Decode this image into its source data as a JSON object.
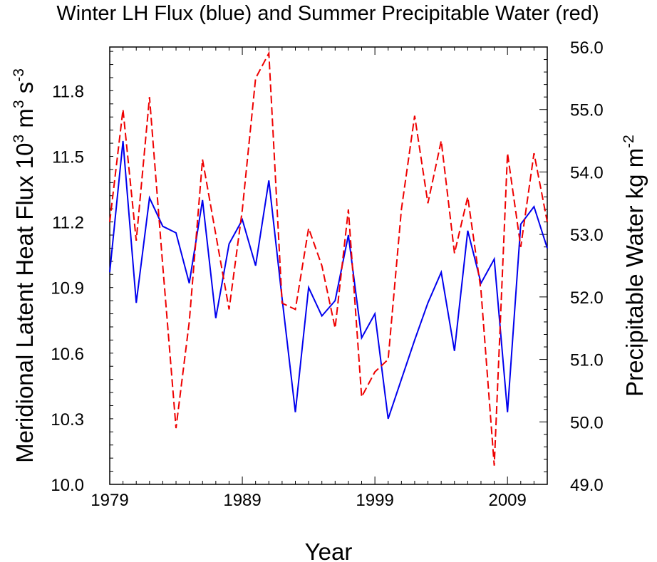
{
  "chart_data": {
    "type": "line",
    "title": "Winter LH Flux (blue) and Summer Precipitable Water (red)",
    "xlabel": "Year",
    "ylabel_left": "Meridional Latent Heat Flux 10",
    "ylabel_left_sup1": "3",
    "ylabel_left_mid": " m",
    "ylabel_left_sup2": "3",
    "ylabel_left_end": " s",
    "ylabel_left_sup3": "-3",
    "ylabel_right": "Precipitable Water kg m",
    "ylabel_right_sup": "-2",
    "xlim": [
      1979,
      2012
    ],
    "ylim_left": [
      10.0,
      12.0
    ],
    "ylim_right": [
      49.0,
      56.0
    ],
    "x_ticks": [
      1979,
      1989,
      1999,
      2009
    ],
    "x_tick_labels": [
      "1979",
      "1989",
      "1999",
      "2009"
    ],
    "y_left_ticks": [
      10.0,
      10.3,
      10.6,
      10.9,
      11.2,
      11.5,
      11.8
    ],
    "y_left_tick_labels": [
      "10.0",
      "10.3",
      "10.6",
      "10.9",
      "11.2",
      "11.5",
      "11.8"
    ],
    "y_right_ticks": [
      49.0,
      50.0,
      51.0,
      52.0,
      53.0,
      54.0,
      55.0,
      56.0
    ],
    "y_right_tick_labels": [
      "49.0",
      "50.0",
      "51.0",
      "52.0",
      "53.0",
      "54.0",
      "55.0",
      "56.0"
    ],
    "grid": false,
    "series": [
      {
        "axis": "left",
        "color": "#0000ee",
        "style": "solid",
        "x": [
          1979,
          1980,
          1981,
          1982,
          1983,
          1984,
          1985,
          1986,
          1987,
          1988,
          1989,
          1990,
          1991,
          1992,
          1993,
          1994,
          1995,
          1996,
          1997,
          1998,
          1999,
          2000,
          2001,
          2002,
          2003,
          2004,
          2005,
          2006,
          2007,
          2008,
          2009,
          2010,
          2011,
          2012
        ],
        "values": [
          10.97,
          11.57,
          10.83,
          11.31,
          11.18,
          11.15,
          10.92,
          11.3,
          10.76,
          11.1,
          11.21,
          11.0,
          11.39,
          10.85,
          10.33,
          10.9,
          10.77,
          10.84,
          11.14,
          10.67,
          10.78,
          10.3,
          10.48,
          10.66,
          10.83,
          10.97,
          10.61,
          11.16,
          10.92,
          11.03,
          10.33,
          11.19,
          11.27,
          11.08
        ]
      },
      {
        "axis": "right",
        "color": "#ee0000",
        "style": "dashed",
        "x": [
          1979,
          1980,
          1981,
          1982,
          1983,
          1984,
          1985,
          1986,
          1987,
          1988,
          1989,
          1990,
          1991,
          1992,
          1993,
          1994,
          1995,
          1996,
          1997,
          1998,
          1999,
          2000,
          2001,
          2002,
          2003,
          2004,
          2005,
          2006,
          2007,
          2008,
          2009,
          2010,
          2011,
          2012
        ],
        "values": [
          53.2,
          55.0,
          52.9,
          55.2,
          52.5,
          49.9,
          51.6,
          54.2,
          53.0,
          51.8,
          53.4,
          55.5,
          55.9,
          51.9,
          51.8,
          53.1,
          52.5,
          51.5,
          53.4,
          50.4,
          50.8,
          51.0,
          53.4,
          54.9,
          53.5,
          54.5,
          52.7,
          53.6,
          52.1,
          49.3,
          54.3,
          52.8,
          54.3,
          53.2
        ]
      }
    ]
  }
}
